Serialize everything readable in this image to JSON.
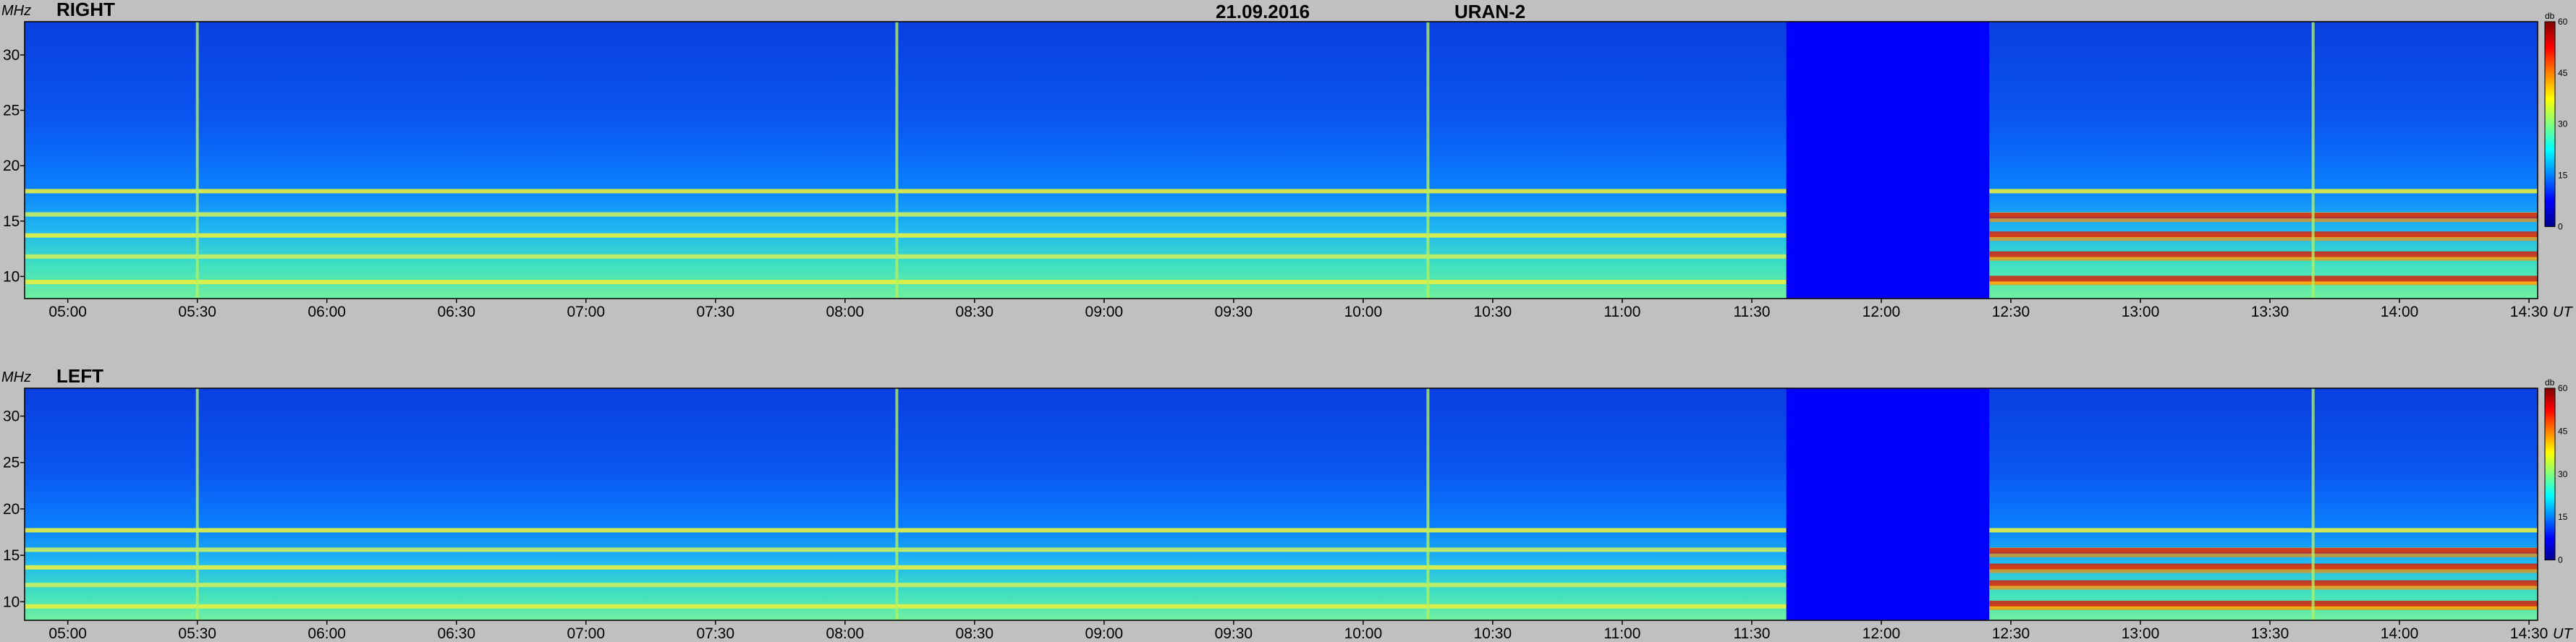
{
  "header": {
    "date": "21.09.2016",
    "instrument": "URAN-2"
  },
  "chart_data": [
    {
      "type": "heatmap",
      "title": "RIGHT",
      "ylabel": "MHz",
      "xunit": "UT",
      "yticks": [
        10,
        15,
        20,
        25,
        30
      ],
      "ylim": [
        8,
        33
      ],
      "xticks": [
        "05:00",
        "05:30",
        "06:00",
        "06:30",
        "07:00",
        "07:30",
        "08:00",
        "08:30",
        "09:00",
        "09:30",
        "10:00",
        "10:30",
        "11:00",
        "11:30",
        "12:00",
        "12:30",
        "13:00",
        "13:30",
        "14:00",
        "14:30"
      ],
      "xlim": [
        "04:50",
        "14:32"
      ],
      "gap": [
        "11:38",
        "12:25"
      ],
      "interference_bands_mhz": [
        9.5,
        11.8,
        13.7,
        15.6,
        17.7
      ],
      "strong_after_gap_mhz": [
        9.8,
        12.0,
        13.8,
        15.5
      ],
      "vertical_bursts": [
        "05:30",
        "08:12",
        "10:15",
        "13:40"
      ],
      "colorbar": {
        "unit": "db",
        "ticks": [
          0,
          15,
          30,
          45,
          60
        ],
        "range": [
          0,
          60
        ]
      }
    },
    {
      "type": "heatmap",
      "title": "LEFT",
      "ylabel": "MHz",
      "xunit": "UT",
      "yticks": [
        10,
        15,
        20,
        25,
        30
      ],
      "ylim": [
        8,
        33
      ],
      "xticks": [
        "05:00",
        "05:30",
        "06:00",
        "06:30",
        "07:00",
        "07:30",
        "08:00",
        "08:30",
        "09:00",
        "09:30",
        "10:00",
        "10:30",
        "11:00",
        "11:30",
        "12:00",
        "12:30",
        "13:00",
        "13:30",
        "14:00",
        "14:30"
      ],
      "xlim": [
        "04:50",
        "14:32"
      ],
      "gap": [
        "11:38",
        "12:25"
      ],
      "interference_bands_mhz": [
        9.5,
        11.8,
        13.7,
        15.6,
        17.7
      ],
      "strong_after_gap_mhz": [
        9.8,
        12.0,
        13.8,
        15.5
      ],
      "vertical_bursts": [
        "05:30",
        "08:12",
        "10:15",
        "13:40"
      ],
      "colorbar": {
        "unit": "db",
        "ticks": [
          0,
          15,
          30,
          45,
          60
        ],
        "range": [
          0,
          60
        ]
      }
    }
  ],
  "colors": {
    "background": "#c0c0c0",
    "gap_fill": "#0000ff",
    "cmap": [
      "#00008f",
      "#0000ff",
      "#0080ff",
      "#00ffff",
      "#80ff80",
      "#ffff00",
      "#ff8000",
      "#ff0000",
      "#800000",
      "#000000"
    ]
  }
}
